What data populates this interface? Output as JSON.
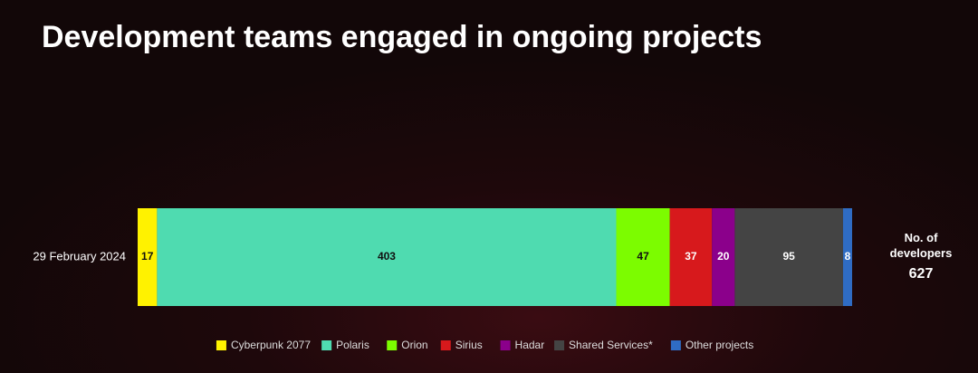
{
  "chart_data": {
    "type": "stacked-bar",
    "orientation": "horizontal",
    "title": "Development teams engaged in ongoing projects",
    "categories": [
      "29 February 2024"
    ],
    "series": [
      {
        "name": "Cyberpunk 2077",
        "color": "#fff200",
        "values": [
          17
        ]
      },
      {
        "name": "Polaris",
        "color": "#4fdbb0",
        "values": [
          403
        ]
      },
      {
        "name": "Orion",
        "color": "#7cfc00",
        "values": [
          47
        ]
      },
      {
        "name": "Sirius",
        "color": "#d7191c",
        "values": [
          37
        ]
      },
      {
        "name": "Hadar",
        "color": "#8b008b",
        "values": [
          20
        ]
      },
      {
        "name": "Shared Services*",
        "color": "#444444",
        "values": [
          95
        ]
      },
      {
        "name": "Other projects",
        "color": "#2f6cc4",
        "values": [
          8
        ]
      }
    ],
    "total_label": "No. of developers",
    "total": 627,
    "legend": "bottom"
  }
}
